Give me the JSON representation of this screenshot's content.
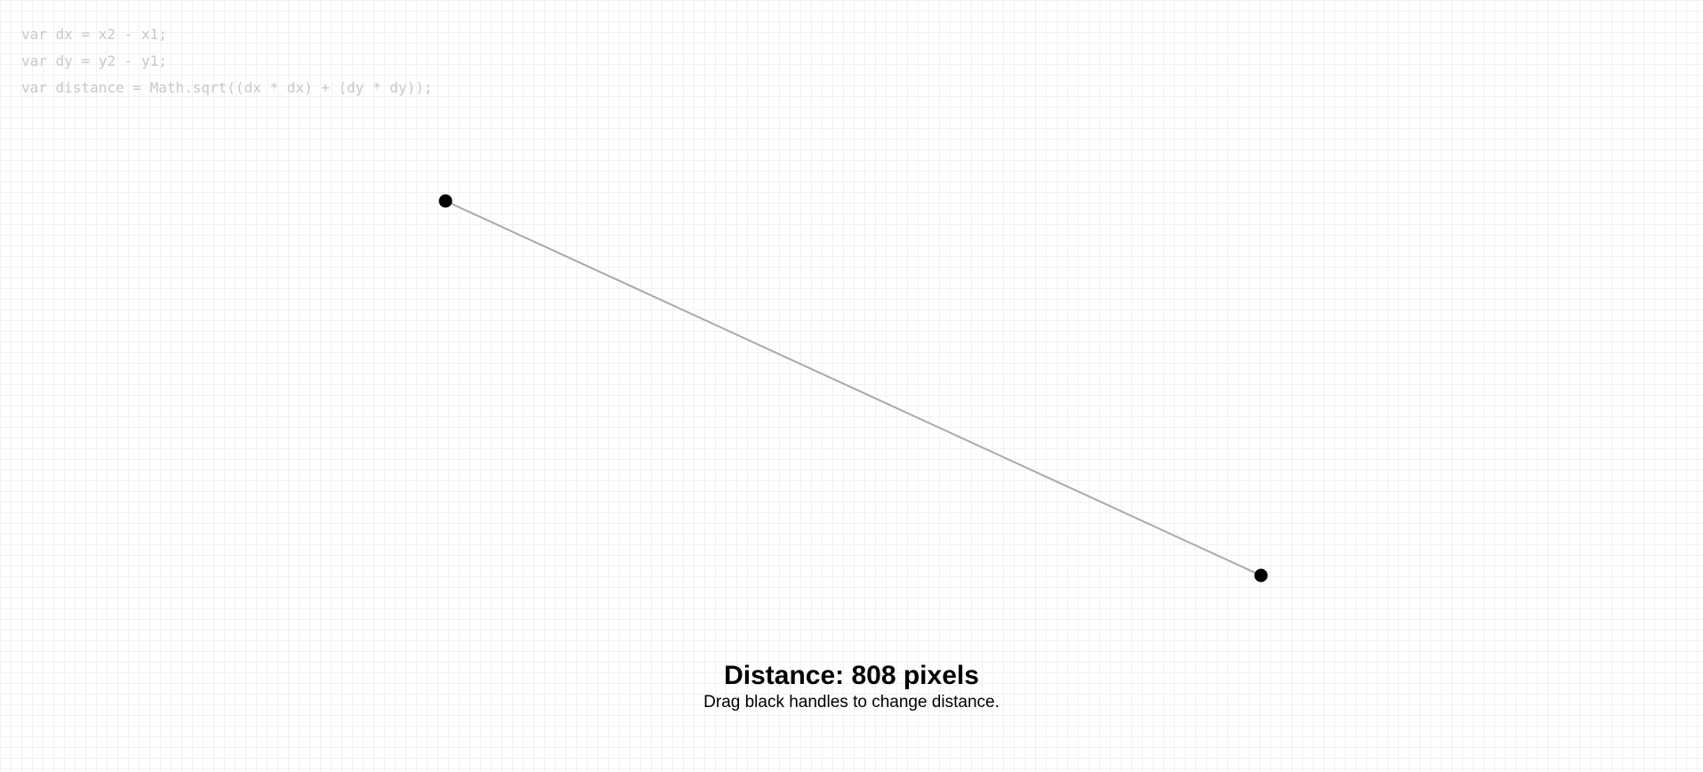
{
  "code": {
    "lines": [
      "var dx = x2 - x1;",
      "var dy = y2 - y1;",
      "var distance = Math.sqrt((dx * dx) + (dy * dy));"
    ]
  },
  "readout": {
    "title": "Distance: 808 pixels",
    "hint": "Drag black handles to change distance."
  }
}
